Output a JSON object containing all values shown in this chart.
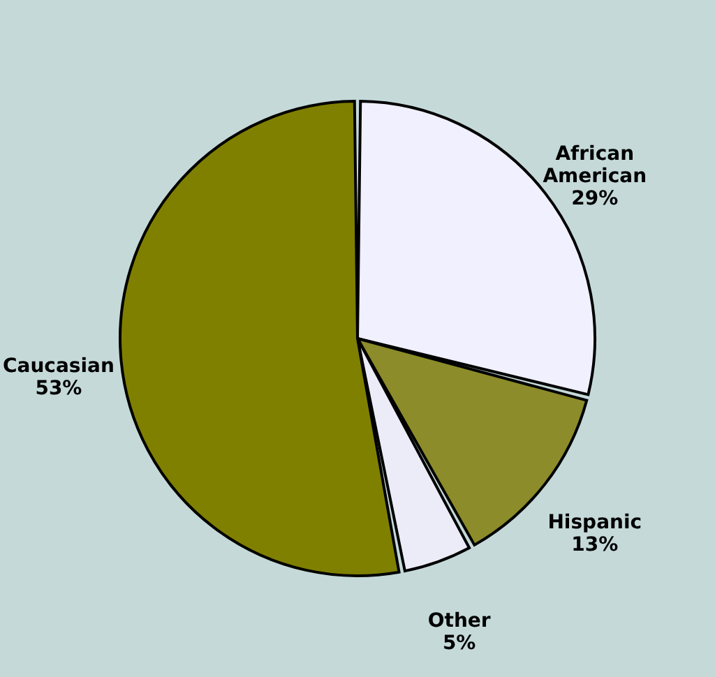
{
  "chart_data": {
    "type": "pie",
    "categories": [
      "African American",
      "Hispanic",
      "Other",
      "Caucasian"
    ],
    "values": [
      29,
      13,
      5,
      53
    ],
    "colors": [
      "#f0f0ff",
      "#8c8c2a",
      "#ececf8",
      "#808000"
    ],
    "value_labels": [
      "29%",
      "13%",
      "5%",
      "53%"
    ]
  }
}
